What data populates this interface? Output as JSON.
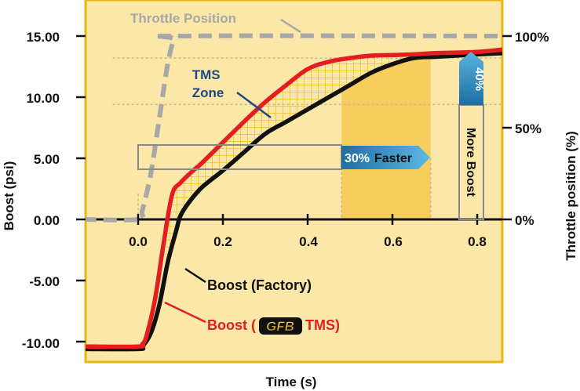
{
  "colors": {
    "plot_bg": "#fbe7a8",
    "plot_border": "#e8b712",
    "throttle": "#a7a7a7",
    "boost_factory": "#111111",
    "boost_tms": "#e41e20",
    "tms_zone_hatch": "#f3c21a",
    "faster_band": "#f6c445",
    "arrow_blue": "#2a7fb3",
    "tms_zone_text": "#1b4a86",
    "gridline": "#c9b98a"
  },
  "chart_data": {
    "type": "line",
    "xlabel": "Time (s)",
    "ylabel_left": "Boost (psi)",
    "ylabel_right": "Throttle position (%)",
    "xlim": [
      -0.13,
      0.86
    ],
    "ylim_left": [
      -11.5,
      18
    ],
    "ylim_right": [
      0,
      100
    ],
    "x_ticks": [
      "0.0",
      "0.2",
      "0.4",
      "0.6",
      "0.8"
    ],
    "x_tick_values": [
      0.0,
      0.2,
      0.4,
      0.6,
      0.8
    ],
    "y_ticks_left": [
      "15.00",
      "10.00",
      "5.00",
      "0.00",
      "-5.00",
      "-10.00"
    ],
    "y_tick_values_left": [
      15,
      10,
      5,
      0,
      -5,
      -10
    ],
    "y_ticks_right": [
      "100%",
      "50%",
      "0%"
    ],
    "y_tick_values_right": [
      100,
      50,
      0
    ],
    "series": [
      {
        "name": "Throttle Position",
        "axis": "right",
        "style": "dashed",
        "x": [
          -0.13,
          0.0,
          0.01,
          0.03,
          0.05,
          0.07,
          0.085,
          0.1,
          0.86
        ],
        "y": [
          0,
          0,
          5,
          25,
          55,
          85,
          98,
          100,
          100
        ]
      },
      {
        "name": "Boost (Factory)",
        "axis": "left",
        "x": [
          -0.13,
          0.0,
          0.01,
          0.03,
          0.05,
          0.07,
          0.09,
          0.1,
          0.12,
          0.15,
          0.2,
          0.25,
          0.3,
          0.35,
          0.4,
          0.45,
          0.5,
          0.55,
          0.6,
          0.65,
          0.7,
          0.75,
          0.8,
          0.86
        ],
        "y": [
          -10.6,
          -10.6,
          -10.4,
          -9.3,
          -7.0,
          -3.5,
          -0.9,
          0.3,
          1.4,
          2.6,
          4.0,
          5.5,
          7.0,
          8.0,
          9.0,
          10.0,
          11.0,
          12.0,
          12.7,
          13.2,
          13.3,
          13.4,
          13.5,
          13.6
        ]
      },
      {
        "name": "Boost (GFB TMS)",
        "axis": "left",
        "x": [
          -0.13,
          0.0,
          0.01,
          0.02,
          0.04,
          0.06,
          0.08,
          0.1,
          0.13,
          0.15,
          0.2,
          0.25,
          0.3,
          0.35,
          0.4,
          0.45,
          0.5,
          0.55,
          0.6,
          0.65,
          0.7,
          0.8,
          0.86
        ],
        "y": [
          -10.4,
          -10.4,
          -10.2,
          -9.5,
          -6.5,
          -2.0,
          2.0,
          3.0,
          4.0,
          4.6,
          6.3,
          8.0,
          9.6,
          11.0,
          12.3,
          12.9,
          13.2,
          13.4,
          13.45,
          13.5,
          13.6,
          13.7,
          13.9
        ]
      }
    ],
    "annotations": {
      "throttle_label": "Throttle Position",
      "tms_zone": [
        "TMS",
        "Zone"
      ],
      "faster_pct": "30%",
      "faster_word": "Faster",
      "boost_pct": "40%",
      "boost_words": "More Boost",
      "factory_label": "Boost (Factory)",
      "tms_label_prefix": "Boost (",
      "tms_logo": "GFB",
      "tms_label_suffix": "TMS)"
    },
    "grid": false,
    "legend": "inline-labels"
  }
}
